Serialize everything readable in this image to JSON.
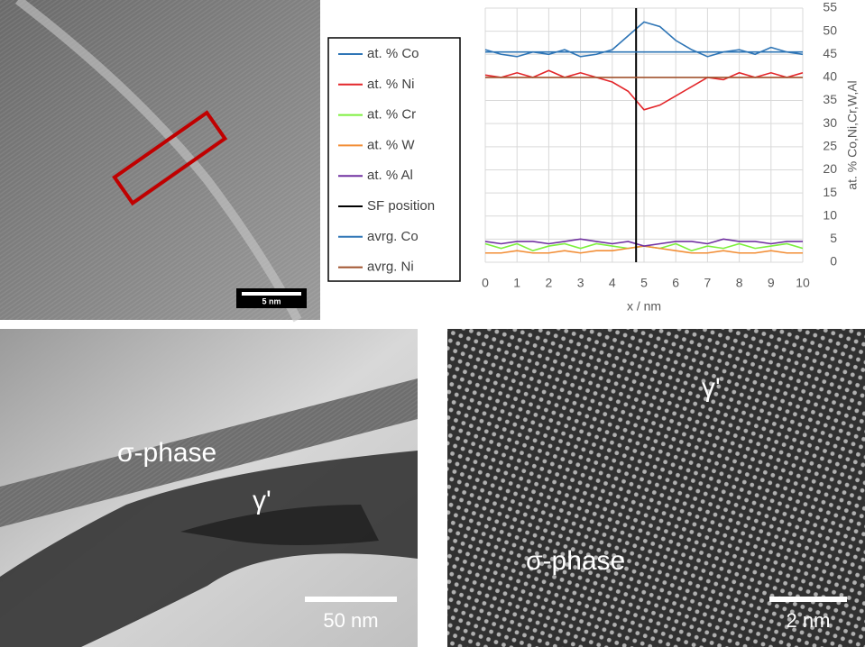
{
  "chart_data": {
    "type": "line",
    "x_label": "x / nm",
    "y_label": "at. % Co,Ni,Cr,W,Al",
    "x": [
      0,
      0.5,
      1,
      1.5,
      2,
      2.5,
      3,
      3.5,
      4,
      4.5,
      5,
      5.5,
      6,
      6.5,
      7,
      7.5,
      8,
      8.5,
      9,
      9.5,
      10
    ],
    "xlim": [
      0,
      10
    ],
    "xticks": [
      0,
      1,
      2,
      3,
      4,
      5,
      6,
      7,
      8,
      9,
      10
    ],
    "ylim": [
      0,
      55
    ],
    "yticks": [
      0,
      5,
      10,
      15,
      20,
      25,
      30,
      35,
      40,
      45,
      50,
      55
    ],
    "grid": true,
    "series": [
      {
        "name": "at. % Co",
        "color": "#2e75b6",
        "values": [
          46,
          45,
          44.5,
          45.5,
          45,
          46,
          44.5,
          45,
          46,
          49,
          52,
          51,
          48,
          46,
          44.5,
          45.5,
          46,
          45,
          46.5,
          45.5,
          45
        ]
      },
      {
        "name": "at. % Ni",
        "color": "#e3262a",
        "values": [
          40.5,
          40,
          41,
          40,
          41.5,
          40,
          41,
          40,
          39,
          37,
          33,
          34,
          36,
          38,
          40,
          39.5,
          41,
          40,
          41,
          40,
          41
        ]
      },
      {
        "name": "at. % Cr",
        "color": "#7cef3c",
        "values": [
          4,
          3,
          4,
          2.5,
          3.5,
          4,
          3,
          4,
          3.5,
          3,
          3.5,
          3,
          4,
          2.5,
          3.5,
          3,
          4,
          3,
          3.5,
          4,
          3
        ]
      },
      {
        "name": "at. % W",
        "color": "#f28e36",
        "values": [
          2,
          2,
          2.5,
          2,
          2,
          2.5,
          2,
          2.5,
          2.5,
          3,
          3.5,
          3,
          2.5,
          2,
          2,
          2.5,
          2,
          2,
          2.5,
          2,
          2
        ]
      },
      {
        "name": "at. % Al",
        "color": "#7030a0",
        "values": [
          4.5,
          4,
          4.5,
          4.5,
          4,
          4.5,
          5,
          4.5,
          4,
          4.5,
          3.5,
          4,
          4.5,
          4.5,
          4,
          5,
          4.5,
          4.5,
          4,
          4.5,
          4.5
        ]
      },
      {
        "name": "SF position",
        "color": "#000000",
        "x": [
          4.75,
          4.75
        ],
        "values": [
          0,
          55
        ]
      },
      {
        "name": "avrg. Co",
        "color": "#2e75b6",
        "x": [
          0,
          10
        ],
        "values": [
          45.5,
          45.5
        ]
      },
      {
        "name": "avrg. Ni",
        "color": "#a0522d",
        "x": [
          0,
          10
        ],
        "values": [
          40,
          40
        ]
      }
    ]
  },
  "panels": {
    "top_left": {
      "scale_bar": "5 nm"
    },
    "bottom_left": {
      "labels": [
        "σ-phase",
        "γ'"
      ],
      "scale_bar": "50 nm"
    },
    "bottom_right": {
      "labels": [
        "γ'",
        "σ-phase"
      ],
      "scale_bar": "2 nm"
    }
  }
}
